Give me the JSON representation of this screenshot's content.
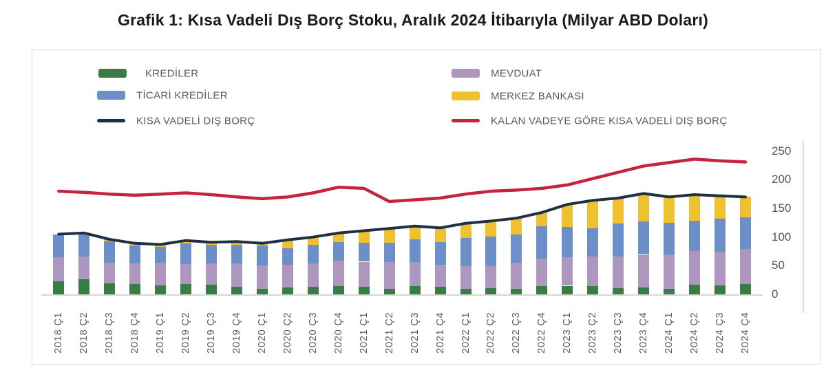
{
  "title": "Grafik 1: Kısa Vadeli Dış Borç Stoku, Aralık 2024 İtibarıyla (Milyar ABD Doları)",
  "legend": {
    "items": [
      {
        "label": "KREDİLER",
        "color": "#3A7D44",
        "marker": "box"
      },
      {
        "label": "TİCARİ KREDİLER",
        "color": "#6D8FC9",
        "marker": "box"
      },
      {
        "label": "KISA VADELİ DIŞ BORÇ",
        "color": "#1F3044",
        "marker": "line"
      },
      {
        "label": "MEVDUAT",
        "color": "#AD97BE",
        "marker": "box"
      },
      {
        "label": "MERKEZ BANKASI",
        "color": "#EFC131",
        "marker": "box"
      },
      {
        "label": "KALAN VADEYE GÖRE KISA VADELİ DIŞ BORÇ",
        "color": "#C52440",
        "marker": "line"
      }
    ]
  },
  "chart_data": {
    "type": "bar",
    "stacked": true,
    "grid": false,
    "legend_position": "top",
    "title": "Grafik 1: Kısa Vadeli Dış Borç Stoku, Aralık 2024 İtibarıyla (Milyar ABD Doları)",
    "xlabel": "",
    "ylabel": "Milyar ABD Doları",
    "ylim": [
      0,
      250
    ],
    "yticks": [
      0,
      50,
      100,
      150,
      200,
      250
    ],
    "categories": [
      "2018 Ç1",
      "2018 Ç2",
      "2018 Ç3",
      "2018 Ç4",
      "2019 Ç1",
      "2019 Ç2",
      "2019 Ç3",
      "2019 Ç4",
      "2020 Ç1",
      "2020 Ç2",
      "2020 Ç3",
      "2020 Ç4",
      "2021 Ç1",
      "2021 Ç2",
      "2021 Ç3",
      "2021 Ç4",
      "2022 Ç1",
      "2022 Ç2",
      "2022 Ç3",
      "2022 Ç4",
      "2023 Ç1",
      "2023 Ç2",
      "2023 Ç3",
      "2023 Ç4",
      "2024 Ç1",
      "2024 Ç2",
      "2024 Ç3",
      "2024 Ç4"
    ],
    "series": [
      {
        "name": "KREDİLER",
        "render": "bar",
        "stack_order": 1,
        "color": "#3A7D44",
        "values": [
          23,
          26,
          19,
          18,
          16,
          18,
          17,
          13,
          10,
          12,
          13,
          14,
          13,
          10,
          14,
          13,
          10,
          11,
          10,
          14,
          15,
          14,
          11,
          12,
          10,
          17,
          16,
          18
        ]
      },
      {
        "name": "MEVDUAT",
        "render": "bar",
        "stack_order": 2,
        "color": "#AD97BE",
        "values": [
          42,
          40,
          36,
          36,
          39,
          35,
          37,
          41,
          41,
          40,
          41,
          45,
          44,
          46,
          42,
          39,
          39,
          38,
          45,
          49,
          50,
          52,
          55,
          57,
          60,
          59,
          58,
          61
        ]
      },
      {
        "name": "TİCARİ KREDİLER",
        "render": "bar",
        "stack_order": 3,
        "color": "#6D8FC9",
        "values": [
          40,
          41,
          37,
          31,
          28,
          36,
          33,
          33,
          34,
          28,
          32,
          32,
          33,
          34,
          40,
          39,
          49,
          52,
          50,
          56,
          53,
          49,
          58,
          58,
          55,
          53,
          58,
          56
        ]
      },
      {
        "name": "MERKEZ BANKASI",
        "render": "bar",
        "stack_order": 4,
        "color": "#EFC131",
        "values": [
          0,
          0,
          4,
          4,
          4,
          5,
          4,
          5,
          4,
          15,
          14,
          16,
          21,
          25,
          23,
          25,
          26,
          27,
          28,
          24,
          39,
          49,
          44,
          49,
          45,
          45,
          40,
          35
        ]
      },
      {
        "name": "KISA VADELİ DIŞ BORÇ",
        "render": "line",
        "color": "#1F3044",
        "values": [
          105,
          107,
          96,
          89,
          87,
          94,
          91,
          92,
          89,
          95,
          100,
          107,
          111,
          115,
          119,
          116,
          124,
          128,
          133,
          143,
          157,
          164,
          168,
          176,
          170,
          174,
          172,
          170
        ]
      },
      {
        "name": "KALAN VADEYE GÖRE KISA VADELİ DIŞ BORÇ",
        "render": "line",
        "color": "#C52440",
        "values": [
          180,
          178,
          175,
          173,
          175,
          177,
          174,
          170,
          167,
          170,
          177,
          187,
          185,
          162,
          165,
          168,
          175,
          180,
          182,
          185,
          191,
          202,
          213,
          224,
          230,
          236,
          233,
          231
        ]
      }
    ]
  }
}
